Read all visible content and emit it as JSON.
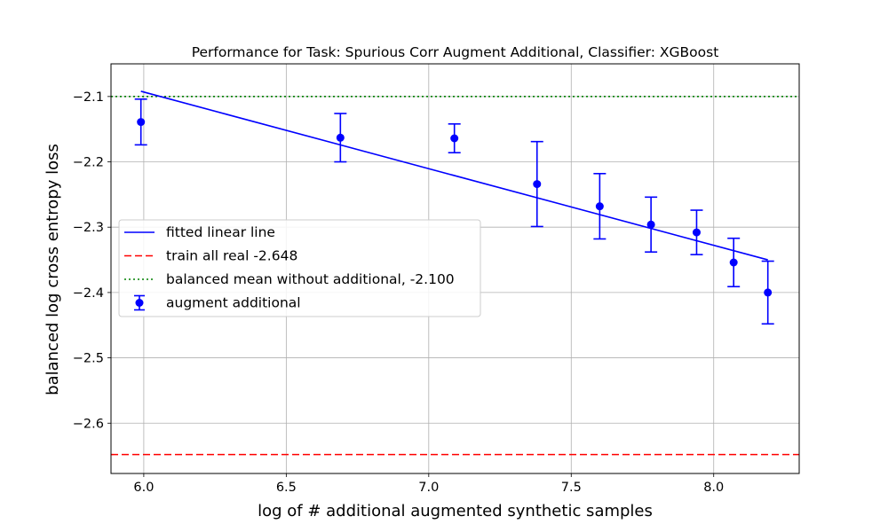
{
  "chart_data": {
    "type": "scatter",
    "title": "Performance for Task: Spurious Corr Augment Additional, Classifier: XGBoost",
    "xlabel": "log of # additional augmented synthetic samples",
    "ylabel": "balanced log cross entropy loss",
    "xlim": [
      5.885,
      8.3
    ],
    "ylim": [
      -2.677,
      -2.05
    ],
    "xticks": [
      6.0,
      6.5,
      7.0,
      7.5,
      8.0
    ],
    "xtick_labels": [
      "6.0",
      "6.5",
      "7.0",
      "7.5",
      "8.0"
    ],
    "yticks": [
      -2.6,
      -2.5,
      -2.4,
      -2.3,
      -2.2,
      -2.1
    ],
    "ytick_labels": [
      "−2.6",
      "−2.5",
      "−2.4",
      "−2.3",
      "−2.2",
      "−2.1"
    ],
    "grid": true,
    "legend_position": "center-left",
    "points": {
      "name": "augment additional",
      "color": "#0000ff",
      "x": [
        5.99,
        6.69,
        7.09,
        7.38,
        7.6,
        7.78,
        7.94,
        8.07,
        8.19
      ],
      "y": [
        -2.139,
        -2.163,
        -2.164,
        -2.234,
        -2.268,
        -2.296,
        -2.308,
        -2.354,
        -2.4
      ],
      "err": [
        0.035,
        0.037,
        0.022,
        0.065,
        0.05,
        0.042,
        0.034,
        0.037,
        0.048
      ]
    },
    "fit_line": {
      "name": "fitted linear line",
      "color": "#0000ff",
      "x": [
        5.99,
        8.19
      ],
      "y": [
        -2.092,
        -2.35
      ]
    },
    "hlines": [
      {
        "name": "train all real -2.648",
        "y": -2.648,
        "color": "#ff0000",
        "style": "dashed"
      },
      {
        "name": "balanced mean without additional, -2.100",
        "y": -2.1,
        "color": "#008000",
        "style": "dotted"
      }
    ],
    "legend": [
      {
        "label": "fitted linear line",
        "kind": "line",
        "color": "#0000ff"
      },
      {
        "label": "train all real -2.648",
        "kind": "dashed",
        "color": "#ff0000"
      },
      {
        "label": "balanced mean without additional, -2.100",
        "kind": "dotted",
        "color": "#008000"
      },
      {
        "label": "augment additional",
        "kind": "errorbar",
        "color": "#0000ff"
      }
    ]
  }
}
